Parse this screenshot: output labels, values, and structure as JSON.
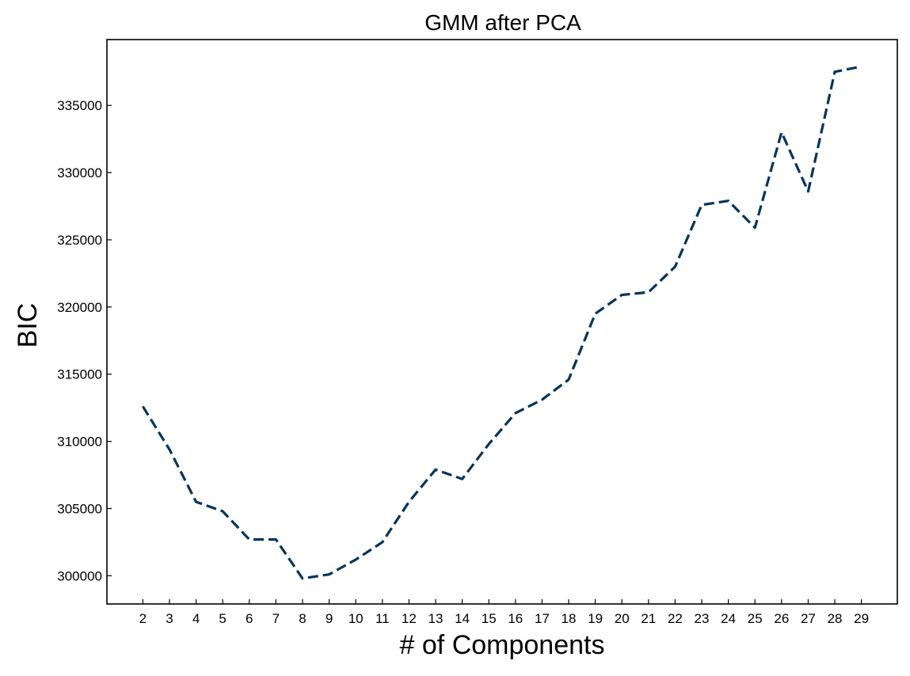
{
  "chart_data": {
    "type": "line",
    "title": "GMM after PCA",
    "xlabel": "# of Components",
    "ylabel": "BIC",
    "x": [
      2,
      3,
      4,
      5,
      6,
      7,
      8,
      9,
      10,
      11,
      12,
      13,
      14,
      15,
      16,
      17,
      18,
      19,
      20,
      21,
      22,
      23,
      24,
      25,
      26,
      27,
      28,
      29
    ],
    "series": [
      {
        "name": "",
        "color": "#04345c",
        "line_style": "dashed",
        "values": [
          312600,
          309400,
          305500,
          304800,
          302700,
          302700,
          299800,
          300100,
          301200,
          302500,
          305500,
          307900,
          307200,
          309800,
          312100,
          313100,
          314600,
          319500,
          320900,
          321100,
          323000,
          327600,
          327900,
          325900,
          333000,
          328600,
          337500,
          337900
        ]
      }
    ],
    "xlim": [
      0.65,
      30.35
    ],
    "ylim": [
      297900,
      339900
    ],
    "yticks": [
      300000,
      305000,
      310000,
      315000,
      320000,
      325000,
      330000,
      335000
    ],
    "grid": false,
    "legend": "none"
  }
}
